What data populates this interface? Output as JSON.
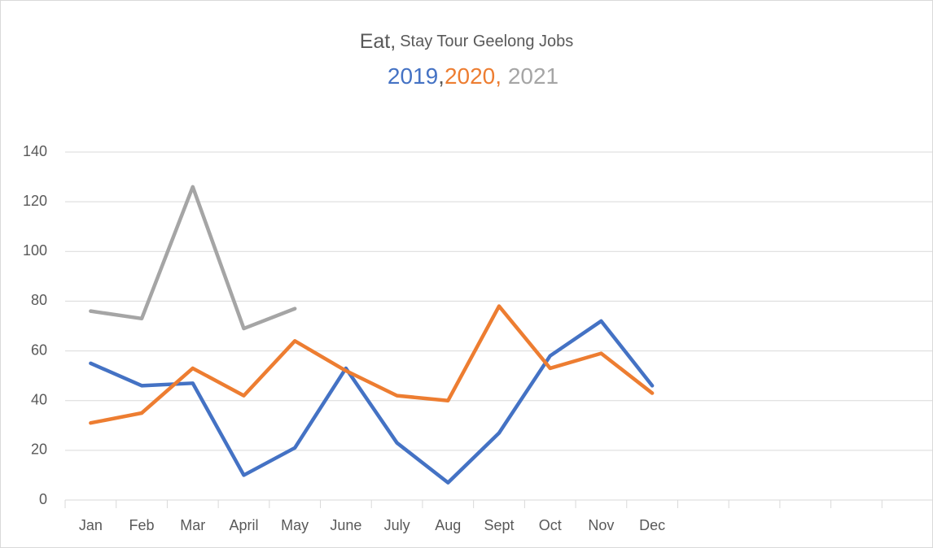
{
  "chart_data": {
    "type": "line",
    "title": [
      "Eat,",
      "Stay Tour Geelong Jobs"
    ],
    "legend_separators": [
      ",",
      ", "
    ],
    "categories": [
      "Jan",
      "Feb",
      "Mar",
      "April",
      "May",
      "June",
      "July",
      "Aug",
      "Sept",
      "Oct",
      "Nov",
      "Dec",
      null,
      null,
      null,
      null,
      null
    ],
    "series": [
      {
        "name": "2019",
        "color": "#4472c4",
        "values": [
          55,
          46,
          47,
          10,
          21,
          53,
          23,
          7,
          27,
          58,
          72,
          46,
          null,
          null,
          null,
          null,
          null
        ]
      },
      {
        "name": "2020",
        "color": "#ed7d31",
        "values": [
          31,
          35,
          53,
          42,
          64,
          52,
          42,
          40,
          78,
          53,
          59,
          43,
          null,
          null,
          null,
          null,
          null
        ]
      },
      {
        "name": "2021",
        "color": "#a5a5a5",
        "values": [
          76,
          73,
          126,
          69,
          77,
          null,
          null,
          null,
          null,
          null,
          null,
          null,
          null,
          null,
          null,
          null,
          null
        ]
      }
    ],
    "ylim": [
      0,
      140
    ],
    "yticks": [
      0,
      20,
      40,
      60,
      80,
      100,
      120,
      140
    ],
    "grid": true
  }
}
